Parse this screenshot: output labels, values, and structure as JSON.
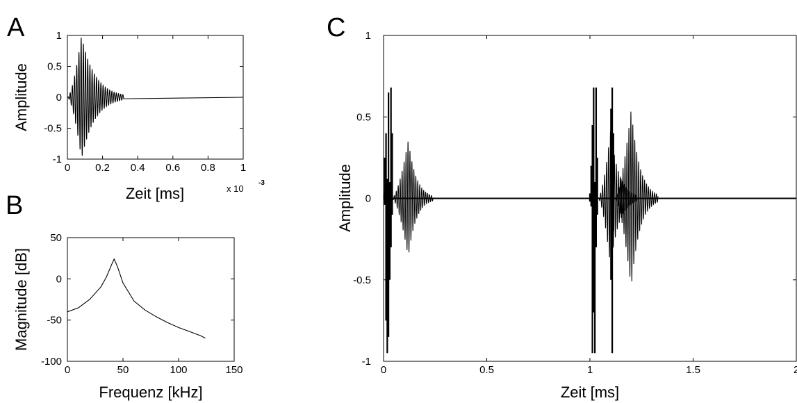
{
  "panels": {
    "a": "A",
    "b": "B",
    "c": "C"
  },
  "chart_data": [
    {
      "id": "A",
      "type": "line",
      "xlabel": "Zeit [ms]",
      "ylabel": "Amplitude",
      "xlim": [
        0,
        1
      ],
      "ylim": [
        -1,
        1
      ],
      "xticks": [
        "0",
        "0.2",
        "0.4",
        "0.6",
        "0.8",
        "1"
      ],
      "yticks": [
        "-1",
        "-0.5",
        "0",
        "0.5",
        "1"
      ],
      "x_multiplier": {
        "base": "x 10",
        "exponent": "-3"
      },
      "series": [
        {
          "signal": "decaying oscillation",
          "start": 0.0,
          "peak_time": 0.08,
          "end": 0.32,
          "peak_amplitude": 1.0,
          "period": 0.0125,
          "tail_value": 0
        }
      ]
    },
    {
      "id": "B",
      "type": "line",
      "xlabel": "Frequenz [kHz]",
      "ylabel": "Magnitude [dB]",
      "xlim": [
        0,
        150
      ],
      "ylim": [
        -100,
        50
      ],
      "xticks": [
        "0",
        "50",
        "100",
        "150"
      ],
      "yticks": [
        "-100",
        "-50",
        "0",
        "50"
      ],
      "series": [
        {
          "x": [
            0,
            10,
            20,
            30,
            35,
            40,
            42,
            45,
            50,
            60,
            70,
            80,
            90,
            100,
            110,
            120,
            124
          ],
          "y": [
            -40,
            -35,
            -25,
            -10,
            2,
            18,
            24,
            15,
            -5,
            -27,
            -38,
            -46,
            -53,
            -59,
            -64,
            -69,
            -72
          ]
        }
      ]
    },
    {
      "id": "C",
      "type": "line",
      "xlabel": "Zeit [ms]",
      "ylabel": "Amplitude",
      "xlim": [
        0,
        2
      ],
      "ylim": [
        -1,
        1
      ],
      "xticks": [
        "0",
        "0.5",
        "1",
        "1.5",
        "2"
      ],
      "yticks": [
        "-1",
        "-0.5",
        "0",
        "0.5",
        "1"
      ],
      "spikes": [
        {
          "x": 0.002,
          "min": -0.01,
          "max": 0.03
        },
        {
          "x": 0.006,
          "min": -0.04,
          "max": 0.25
        },
        {
          "x": 0.012,
          "min": -0.75,
          "max": 0.4
        },
        {
          "x": 0.018,
          "min": -0.95,
          "max": 0.12
        },
        {
          "x": 0.024,
          "min": -0.85,
          "max": 0.65
        },
        {
          "x": 0.03,
          "min": -0.5,
          "max": 0.1
        },
        {
          "x": 0.036,
          "min": -0.3,
          "max": 0.68
        },
        {
          "x": 0.042,
          "min": -0.1,
          "max": 0.4
        },
        {
          "x": 1.0,
          "min": -0.02,
          "max": 0.03
        },
        {
          "x": 1.006,
          "min": -0.05,
          "max": 0.2
        },
        {
          "x": 1.012,
          "min": -0.95,
          "max": 0.45
        },
        {
          "x": 1.018,
          "min": -0.7,
          "max": 0.68
        },
        {
          "x": 1.024,
          "min": -0.95,
          "max": 0.1
        },
        {
          "x": 1.03,
          "min": -0.3,
          "max": 0.68
        },
        {
          "x": 1.036,
          "min": -0.1,
          "max": 0.25
        },
        {
          "x": 1.102,
          "min": -0.5,
          "max": 0.55
        },
        {
          "x": 1.108,
          "min": -0.95,
          "max": 0.68
        },
        {
          "x": 1.114,
          "min": -0.2,
          "max": 0.4
        }
      ],
      "bursts": [
        {
          "start": 0.04,
          "peak_time": 0.12,
          "end": 0.24,
          "peak_amplitude": 0.36,
          "period": 0.0095
        },
        {
          "start": 1.04,
          "peak_time": 1.1,
          "end": 1.23,
          "peak_amplitude": 0.42,
          "period": 0.0095
        },
        {
          "start": 1.12,
          "peak_time": 1.2,
          "end": 1.33,
          "peak_amplitude": 0.55,
          "period": 0.0095
        }
      ]
    }
  ]
}
